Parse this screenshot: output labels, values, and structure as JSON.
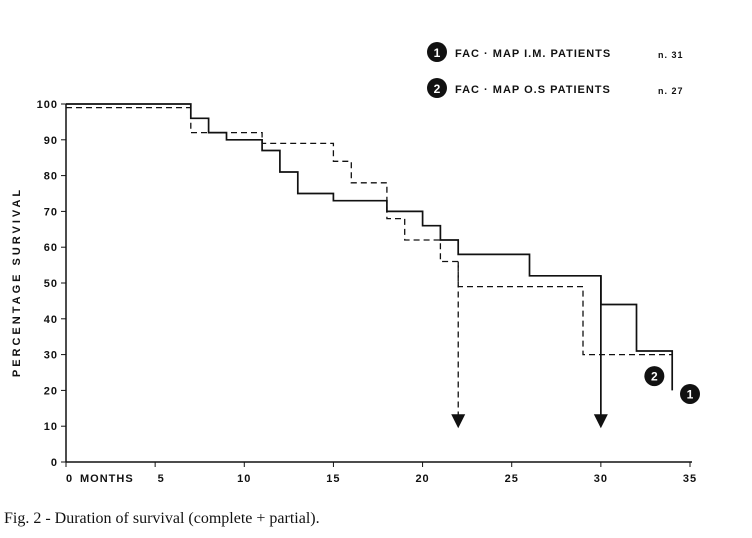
{
  "chart_data": {
    "type": "line",
    "step": true,
    "ylabel": "PERCENTAGE SURVIVAL",
    "xlabel": "MONTHS",
    "xlim": [
      0,
      35
    ],
    "ylim": [
      0,
      100
    ],
    "x_ticks": [
      "0",
      "5",
      "10",
      "15",
      "20",
      "25",
      "30",
      "35"
    ],
    "x_tick_values": [
      0,
      5,
      10,
      15,
      20,
      25,
      30,
      35
    ],
    "y_ticks": [
      "0",
      "10",
      "20",
      "30",
      "40",
      "50",
      "60",
      "70",
      "80",
      "90",
      "100"
    ],
    "y_tick_values": [
      0,
      10,
      20,
      30,
      40,
      50,
      60,
      70,
      80,
      90,
      100
    ],
    "grid": false,
    "legend_position": "top-right",
    "caption": "Fig. 2 - Duration of survival (complete + partial).",
    "series": [
      {
        "marker": "1",
        "name": "FAC · MAP I.M. PATIENTS",
        "n_label": "n. 31",
        "style": "solid",
        "x": [
          0,
          7,
          7,
          8,
          8,
          9,
          9,
          11,
          11,
          12,
          12,
          13,
          13,
          15,
          15,
          18,
          18,
          20,
          20,
          21,
          21,
          22,
          22,
          26,
          26,
          30,
          30,
          32,
          32,
          34,
          34
        ],
        "y": [
          100,
          100,
          96,
          96,
          92,
          92,
          90,
          90,
          87,
          87,
          81,
          81,
          75,
          75,
          73,
          73,
          70,
          70,
          66,
          66,
          62,
          62,
          58,
          58,
          52,
          52,
          44,
          44,
          31,
          31,
          20
        ],
        "end_label_x": 35,
        "end_label_y": 19
      },
      {
        "marker": "2",
        "name": "FAC · MAP O.S PATIENTS",
        "n_label": "n. 27",
        "style": "dashed",
        "x": [
          0,
          7,
          7,
          11,
          11,
          15,
          15,
          16,
          16,
          18,
          18,
          19,
          19,
          21,
          21,
          22,
          22,
          29,
          29,
          34
        ],
        "y": [
          99,
          99,
          92,
          92,
          89,
          89,
          84,
          84,
          78,
          78,
          68,
          68,
          62,
          62,
          56,
          56,
          49,
          49,
          30,
          30
        ],
        "end_label_x": 33,
        "end_label_y": 24
      }
    ],
    "arrows": [
      {
        "series_style": "dashed",
        "x": 22,
        "from_y": 56,
        "to_y": 10
      },
      {
        "series_style": "solid",
        "x": 30,
        "from_y": 52,
        "to_y": 10
      }
    ]
  }
}
